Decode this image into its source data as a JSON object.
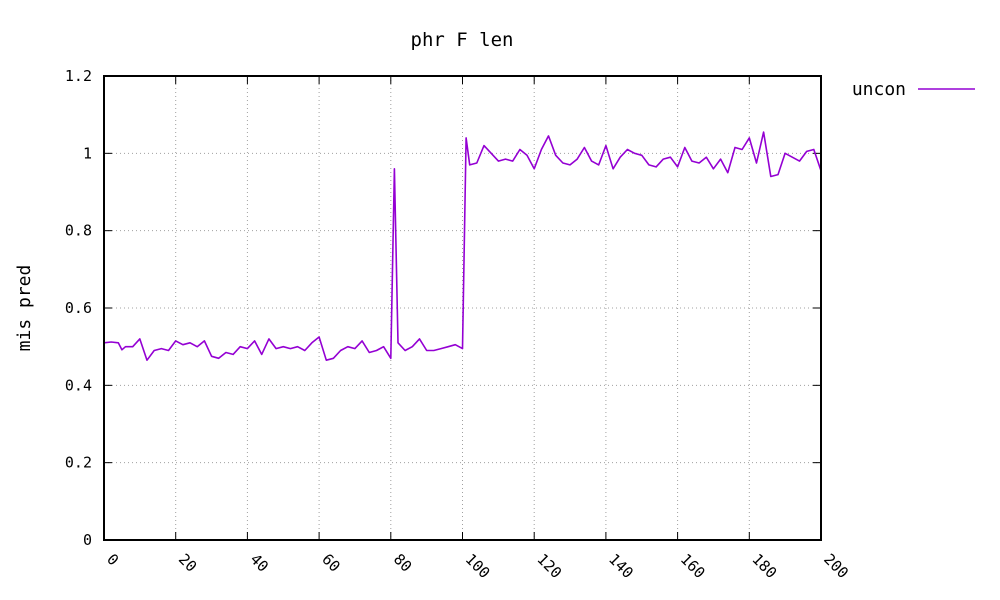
{
  "chart_data": {
    "type": "line",
    "title": "phr F len",
    "xlabel": "",
    "ylabel": "mis pred",
    "xlim": [
      0,
      200
    ],
    "ylim": [
      0,
      1.2
    ],
    "xticks": [
      "0",
      "20",
      "40",
      "60",
      "80",
      "100",
      "120",
      "140",
      "160",
      "180",
      "200"
    ],
    "yticks": [
      "0",
      "0.2",
      "0.4",
      "0.6",
      "0.8",
      "1",
      "1.2"
    ],
    "grid": true,
    "legend_position": "top-right, outside plot",
    "series": [
      {
        "name": "uncon",
        "color": "#9400d3",
        "x": [
          0,
          2,
          4,
          5,
          6,
          8,
          10,
          12,
          14,
          16,
          18,
          20,
          22,
          24,
          26,
          28,
          30,
          32,
          34,
          36,
          38,
          40,
          42,
          44,
          46,
          48,
          50,
          52,
          54,
          56,
          58,
          60,
          62,
          64,
          66,
          68,
          70,
          72,
          74,
          76,
          78,
          80,
          81,
          82,
          84,
          86,
          88,
          90,
          92,
          94,
          96,
          98,
          100,
          101,
          102,
          104,
          106,
          108,
          110,
          112,
          114,
          116,
          118,
          120,
          122,
          124,
          126,
          128,
          130,
          132,
          134,
          136,
          138,
          140,
          142,
          144,
          146,
          148,
          150,
          152,
          154,
          156,
          158,
          160,
          162,
          164,
          166,
          168,
          170,
          172,
          174,
          176,
          178,
          180,
          182,
          184,
          186,
          188,
          190,
          192,
          194,
          196,
          198,
          200
        ],
        "y": [
          0.51,
          0.512,
          0.51,
          0.492,
          0.5,
          0.5,
          0.52,
          0.465,
          0.49,
          0.495,
          0.49,
          0.515,
          0.505,
          0.51,
          0.5,
          0.515,
          0.475,
          0.47,
          0.485,
          0.48,
          0.5,
          0.495,
          0.515,
          0.48,
          0.52,
          0.495,
          0.5,
          0.495,
          0.5,
          0.49,
          0.51,
          0.525,
          0.465,
          0.47,
          0.49,
          0.5,
          0.495,
          0.515,
          0.485,
          0.49,
          0.5,
          0.47,
          0.96,
          0.51,
          0.49,
          0.5,
          0.52,
          0.49,
          0.49,
          0.495,
          0.5,
          0.505,
          0.495,
          1.04,
          0.97,
          0.975,
          1.02,
          1.0,
          0.98,
          0.985,
          0.98,
          1.01,
          0.995,
          0.96,
          1.01,
          1.045,
          0.995,
          0.975,
          0.97,
          0.985,
          1.015,
          0.98,
          0.97,
          1.02,
          0.96,
          0.99,
          1.01,
          1.0,
          0.995,
          0.97,
          0.965,
          0.985,
          0.99,
          0.965,
          1.015,
          0.98,
          0.975,
          0.99,
          0.96,
          0.985,
          0.95,
          1.015,
          1.01,
          1.04,
          0.975,
          1.055,
          0.94,
          0.945,
          1.0,
          0.99,
          0.98,
          1.005,
          1.01,
          0.955
        ]
      }
    ]
  }
}
